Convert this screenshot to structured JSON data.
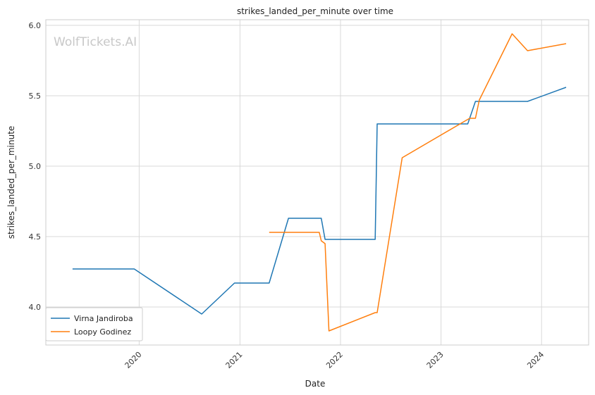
{
  "chart_data": {
    "type": "line",
    "title": "strikes_landed_per_minute over time",
    "xlabel": "Date",
    "ylabel": "strikes_landed_per_minute",
    "xlim": [
      "2019-01-27",
      "2024-06-20"
    ],
    "ylim": [
      3.73,
      6.04
    ],
    "x_ticks": [
      "2020",
      "2021",
      "2022",
      "2023",
      "2024"
    ],
    "y_ticks": [
      "4.0",
      "4.5",
      "5.0",
      "5.5",
      "6.0"
    ],
    "grid": true,
    "legend_position": "lower-left",
    "watermark": "WolfTickets.AI",
    "series": [
      {
        "name": "Virna Jandiroba",
        "color": "#1f77b4",
        "points": [
          [
            "2019-05-04",
            4.27
          ],
          [
            "2019-12-14",
            4.27
          ],
          [
            "2020-08-15",
            3.95
          ],
          [
            "2020-12-12",
            4.17
          ],
          [
            "2021-04-17",
            4.17
          ],
          [
            "2021-06-26",
            4.63
          ],
          [
            "2021-10-23",
            4.63
          ],
          [
            "2021-11-06",
            4.48
          ],
          [
            "2022-05-07",
            4.48
          ],
          [
            "2022-05-14",
            5.3
          ],
          [
            "2023-04-08",
            5.3
          ],
          [
            "2023-05-06",
            5.46
          ],
          [
            "2023-11-11",
            5.46
          ],
          [
            "2024-03-30",
            5.56
          ]
        ]
      },
      {
        "name": "Loopy Godinez",
        "color": "#ff7f0e",
        "points": [
          [
            "2021-04-17",
            4.53
          ],
          [
            "2021-10-16",
            4.53
          ],
          [
            "2021-10-23",
            4.47
          ],
          [
            "2021-11-06",
            4.45
          ],
          [
            "2021-11-20",
            3.83
          ],
          [
            "2022-05-07",
            3.96
          ],
          [
            "2022-05-14",
            3.96
          ],
          [
            "2022-08-13",
            5.06
          ],
          [
            "2023-04-15",
            5.34
          ],
          [
            "2023-05-06",
            5.34
          ],
          [
            "2023-05-20",
            5.47
          ],
          [
            "2023-09-16",
            5.94
          ],
          [
            "2023-11-11",
            5.82
          ],
          [
            "2024-03-30",
            5.87
          ]
        ]
      }
    ]
  }
}
